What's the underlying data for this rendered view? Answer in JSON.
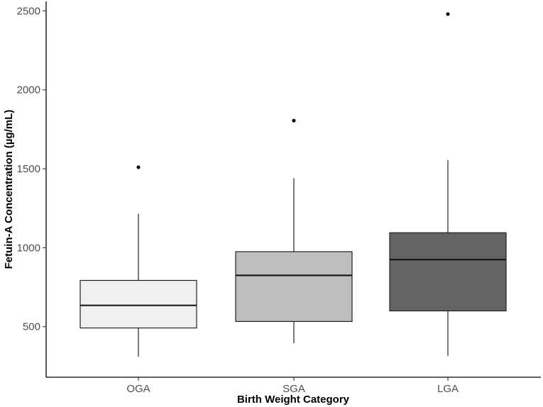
{
  "chart_data": {
    "type": "box",
    "xlabel": "Birth Weight Category",
    "ylabel": "Fetuin-A Concentration (µg/mL)",
    "ylim": [
      180,
      2560
    ],
    "yticks": [
      500,
      1000,
      1500,
      2000,
      2500
    ],
    "yticks_labels": [
      "500",
      "1000",
      "1500",
      "2000",
      "2500"
    ],
    "grid": false,
    "categories": [
      "OGA",
      "SGA",
      "LGA"
    ],
    "boxes": [
      {
        "category": "OGA",
        "lower_whisker": 310,
        "q1": 492,
        "median": 635,
        "q3": 793,
        "upper_whisker": 1215,
        "outliers": [
          1510
        ],
        "fill": "#f0f0f0"
      },
      {
        "category": "SGA",
        "lower_whisker": 395,
        "q1": 533,
        "median": 825,
        "q3": 975,
        "upper_whisker": 1440,
        "outliers": [
          1805
        ],
        "fill": "#bebebe"
      },
      {
        "category": "LGA",
        "lower_whisker": 315,
        "q1": 600,
        "median": 925,
        "q3": 1095,
        "upper_whisker": 1555,
        "outliers": [
          2480
        ],
        "fill": "#646464"
      }
    ]
  }
}
